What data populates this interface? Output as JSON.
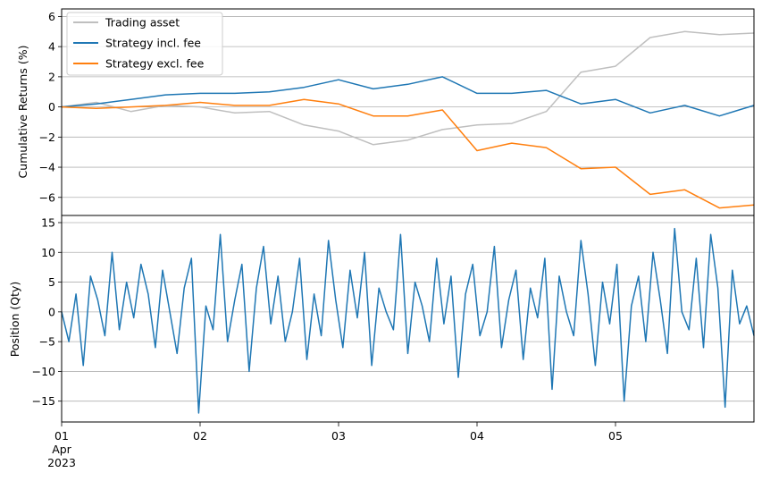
{
  "chart_data": [
    {
      "type": "line",
      "ylabel": "Cumulative Returns (%)",
      "ylim": [
        -7.2,
        6.5
      ],
      "yticks": [
        -6,
        -4,
        -2,
        0,
        2,
        4,
        6
      ],
      "ytick_labels": [
        "−6",
        "−4",
        "−2",
        "0",
        "2",
        "4",
        "6"
      ],
      "grid": "horizontal",
      "legend": "upper-left",
      "x": [
        "2023-04-01 00:00",
        "2023-04-01 06:00",
        "2023-04-01 12:00",
        "2023-04-01 18:00",
        "2023-04-02 00:00",
        "2023-04-02 06:00",
        "2023-04-02 12:00",
        "2023-04-02 18:00",
        "2023-04-03 00:00",
        "2023-04-03 06:00",
        "2023-04-03 12:00",
        "2023-04-03 18:00",
        "2023-04-04 00:00",
        "2023-04-04 06:00",
        "2023-04-04 12:00",
        "2023-04-04 18:00",
        "2023-04-05 00:00",
        "2023-04-05 06:00",
        "2023-04-05 12:00",
        "2023-04-05 18:00",
        "2023-04-06 00:00"
      ],
      "series": [
        {
          "name": "Trading asset",
          "color": "#bfbfbf",
          "values": [
            0.0,
            0.3,
            -0.3,
            0.1,
            0.0,
            -0.4,
            -0.3,
            -1.2,
            -1.6,
            -2.5,
            -2.2,
            -1.5,
            -1.2,
            -1.1,
            -0.3,
            2.3,
            2.7,
            4.6,
            5.0,
            4.8,
            4.9
          ]
        },
        {
          "name": "Strategy incl. fee",
          "color": "#1f77b4",
          "values": [
            0.0,
            0.2,
            0.5,
            0.8,
            0.9,
            0.9,
            1.0,
            1.3,
            1.8,
            1.2,
            1.5,
            2.0,
            0.9,
            0.9,
            1.1,
            0.2,
            0.5,
            -0.4,
            0.1,
            -0.6,
            0.1
          ]
        },
        {
          "name": "Strategy excl. fee",
          "color": "#ff7f0e",
          "values": [
            0.0,
            -0.1,
            0.0,
            0.1,
            0.3,
            0.1,
            0.1,
            0.5,
            0.2,
            -0.6,
            -0.6,
            -0.2,
            -2.9,
            -2.4,
            -2.7,
            -4.1,
            -4.0,
            -5.8,
            -5.5,
            -6.7,
            -6.5
          ]
        }
      ]
    },
    {
      "type": "line",
      "ylabel": "Position (Qty)",
      "xlabel": "",
      "ylim": [
        -18.5,
        16.2
      ],
      "yticks": [
        -15,
        -10,
        -5,
        0,
        5,
        10,
        15
      ],
      "ytick_labels": [
        "−15",
        "−10",
        "−5",
        "0",
        "5",
        "10",
        "15"
      ],
      "xlim": [
        "2023-04-01",
        "2023-04-06"
      ],
      "xticks": [
        {
          "label": "01",
          "sub": "Apr",
          "sub2": "2023"
        },
        {
          "label": "02"
        },
        {
          "label": "03"
        },
        {
          "label": "04"
        },
        {
          "label": "05"
        }
      ],
      "grid": "horizontal",
      "series": [
        {
          "name": "",
          "color": "#1f77b4",
          "values": [
            0,
            -5,
            3,
            -9,
            6,
            2,
            -4,
            10,
            -3,
            5,
            -1,
            8,
            3,
            -6,
            7,
            0,
            -7,
            4,
            9,
            -17,
            1,
            -3,
            13,
            -5,
            2,
            8,
            -10,
            4,
            11,
            -2,
            6,
            -5,
            0,
            9,
            -8,
            3,
            -4,
            12,
            2,
            -6,
            7,
            -1,
            10,
            -9,
            4,
            0,
            -3,
            13,
            -7,
            5,
            1,
            -5,
            9,
            -2,
            6,
            -11,
            3,
            8,
            -4,
            0,
            11,
            -6,
            2,
            7,
            -8,
            4,
            -1,
            9,
            -13,
            6,
            0,
            -4,
            12,
            3,
            -9,
            5,
            -2,
            8,
            -15,
            1,
            6,
            -5,
            10,
            2,
            -7,
            14,
            0,
            -3,
            9,
            -6,
            13,
            4,
            -16,
            7,
            -2,
            1,
            -4
          ]
        }
      ]
    }
  ]
}
